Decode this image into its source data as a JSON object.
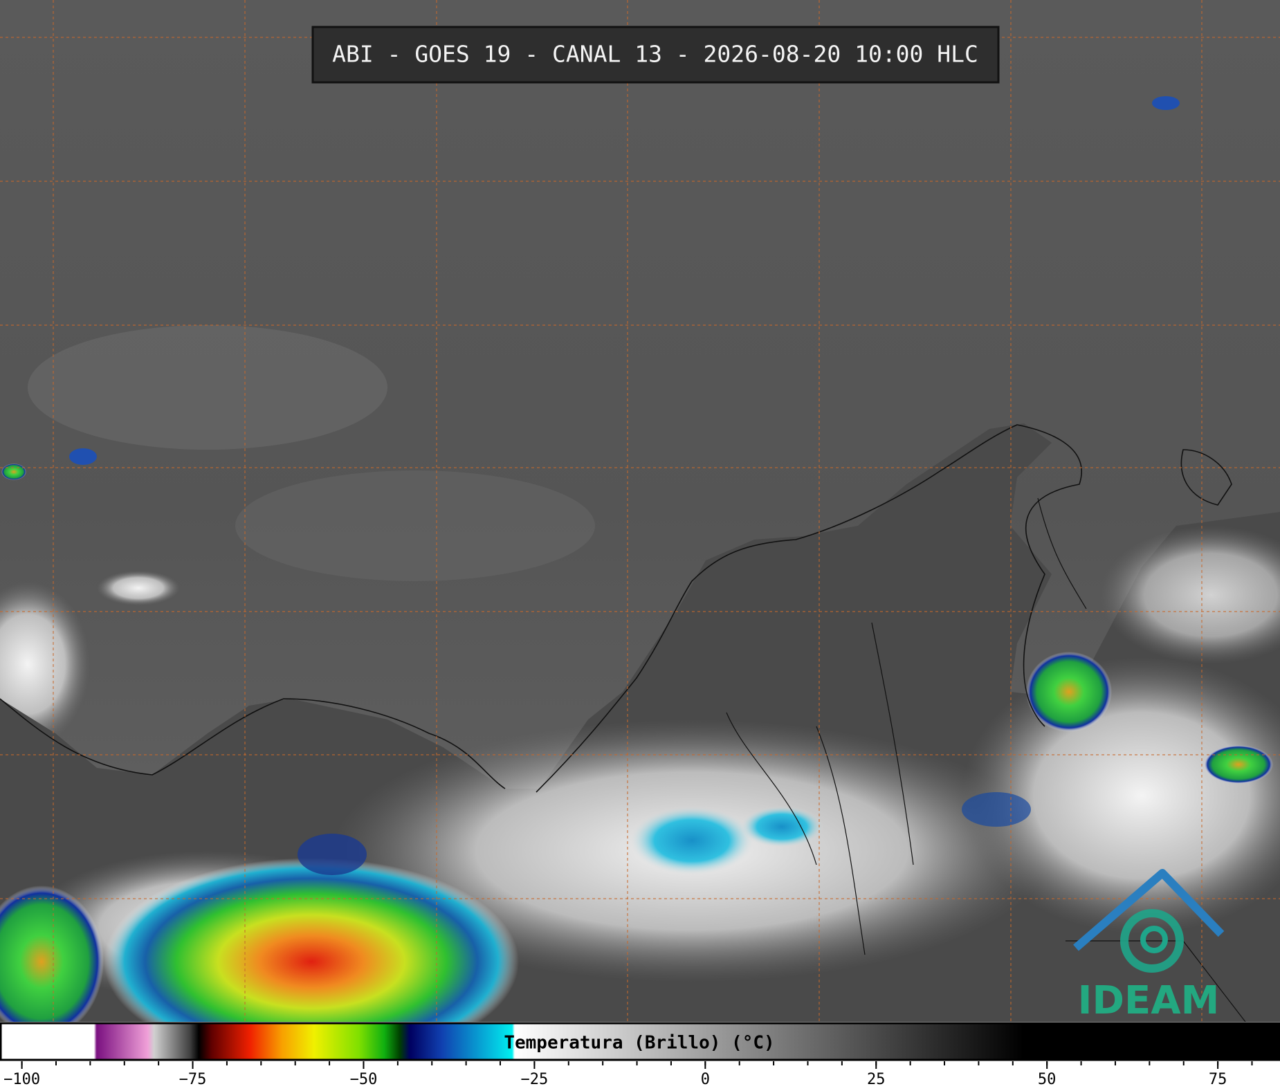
{
  "title": "ABI - GOES 19 - CANAL 13 - 2026-08-20 10:00 HLC",
  "logo": "IDEAM",
  "colorbar": {
    "label": "Temperatura (Brillo) (°C)",
    "xlim": [
      -103.2,
      84.1
    ],
    "ticks": [
      {
        "value": -100,
        "label": "−100"
      },
      {
        "value": -75,
        "label": "−75"
      },
      {
        "value": -50,
        "label": "−50"
      },
      {
        "value": -25,
        "label": "−25"
      },
      0,
      25,
      50,
      75
    ],
    "minor_step": 5
  }
}
